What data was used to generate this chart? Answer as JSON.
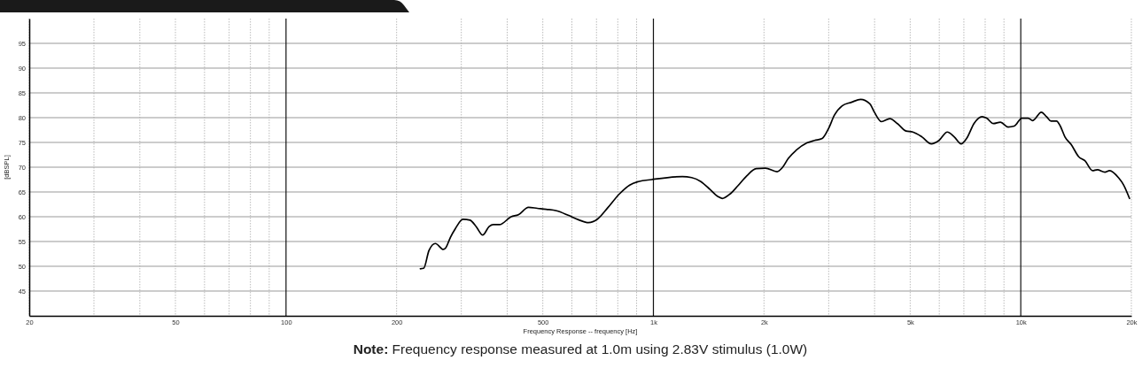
{
  "chart_data": {
    "type": "line",
    "xlabel": "Frequency Response -- frequency [Hz]",
    "ylabel": "[dBSPL]",
    "annotations": [
      "Note: Frequency response measured at 1.0m using 2.83V stimulus (1.0W)"
    ],
    "log": "x",
    "grid": true,
    "xlim": [
      20,
      20000
    ],
    "ylim": [
      40,
      100
    ],
    "yticks": [
      45,
      50,
      55,
      60,
      65,
      70,
      75,
      80,
      85,
      90,
      95
    ],
    "xticks": [
      20,
      {
        "value": 30,
        "label": null
      },
      {
        "value": 40,
        "label": null
      },
      50,
      {
        "value": 60,
        "label": null
      },
      {
        "value": 70,
        "label": null
      },
      {
        "value": 80,
        "label": null
      },
      {
        "value": 90,
        "label": null
      },
      100,
      200,
      {
        "value": 300,
        "label": null
      },
      {
        "value": 400,
        "label": null
      },
      500,
      {
        "value": 600,
        "label": null
      },
      {
        "value": 700,
        "label": null
      },
      {
        "value": 800,
        "label": null
      },
      {
        "value": 900,
        "label": null
      },
      {
        "value": 1000,
        "label": "1k"
      },
      {
        "value": 2000,
        "label": "2k"
      },
      {
        "value": 3000,
        "label": null
      },
      {
        "value": 4000,
        "label": null
      },
      {
        "value": 5000,
        "label": "5k"
      },
      {
        "value": 6000,
        "label": null
      },
      {
        "value": 7000,
        "label": null
      },
      {
        "value": 8000,
        "label": null
      },
      {
        "value": 9000,
        "label": null
      },
      {
        "value": 10000,
        "label": "10k"
      },
      {
        "value": 20000,
        "label": "20k"
      }
    ],
    "series": [
      {
        "color": "#000000",
        "x": [
          232,
          237,
          245,
          255,
          268,
          272,
          280,
          289,
          303,
          317,
          330,
          343,
          357,
          367,
          381,
          410,
          429,
          457,
          483,
          511,
          545,
          586,
          625,
          666,
          704,
          751,
          808,
          862,
          911,
          989,
          1199,
          1271,
          1346,
          1426,
          1496,
          1540,
          1617,
          1696,
          1797,
          1904,
          2018,
          2171,
          2243,
          2330,
          2445,
          2617,
          2745,
          2881,
          2993,
          3110,
          3265,
          3459,
          3665,
          3884,
          3996,
          4177,
          4401,
          4617,
          4873,
          5084,
          5386,
          5708,
          5989,
          6310,
          6594,
          6880,
          7121,
          7470,
          7843,
          8073,
          8423,
          8805,
          9237,
          9600,
          10072,
          10469,
          10777,
          11375,
          11750,
          12089,
          12515,
          12810,
          13193,
          13710,
          14383,
          14948,
          15684,
          16148,
          16943,
          17442,
          18484,
          19022,
          19767
        ],
        "values": [
          49.5,
          49.6,
          53.2,
          54.6,
          53.4,
          53.7,
          55.8,
          57.6,
          59.5,
          59.3,
          57.9,
          56.3,
          58.0,
          58.4,
          58.4,
          60.0,
          60.4,
          61.9,
          61.7,
          61.5,
          61.2,
          60.3,
          59.4,
          58.8,
          59.5,
          61.8,
          64.6,
          66.4,
          67.1,
          67.5,
          68.1,
          67.9,
          67.1,
          65.5,
          64.1,
          63.7,
          64.6,
          66.2,
          68.3,
          69.7,
          69.8,
          69.1,
          69.9,
          71.8,
          73.4,
          74.9,
          75.4,
          75.8,
          77.7,
          80.5,
          82.4,
          83.1,
          83.7,
          82.8,
          81.1,
          79.2,
          79.8,
          78.8,
          77.3,
          77.1,
          76.1,
          74.7,
          75.4,
          77.1,
          76.1,
          74.7,
          75.8,
          78.9,
          80.2,
          79.9,
          78.8,
          79.1,
          78.1,
          78.3,
          79.9,
          79.9,
          79.4,
          81.1,
          80.2,
          79.3,
          79.3,
          78.3,
          76.1,
          74.6,
          72.1,
          71.3,
          69.3,
          69.5,
          69.0,
          69.3,
          67.8,
          66.5,
          63.7
        ]
      }
    ]
  }
}
